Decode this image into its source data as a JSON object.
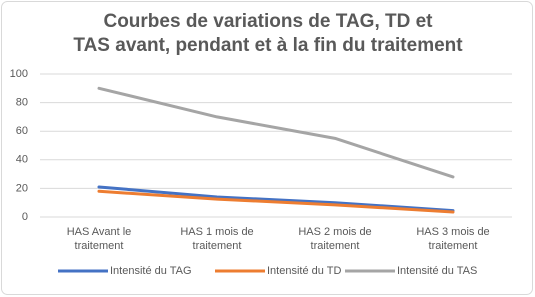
{
  "chart_data": {
    "type": "line",
    "title": [
      "Courbes de variations de TAG, TD et",
      "TAS avant, pendant et à la fin du traitement"
    ],
    "categories": [
      [
        "HAS Avant le",
        "traitement"
      ],
      [
        "HAS 1 mois de",
        "traitement"
      ],
      [
        "HAS 2 mois de",
        "traitement"
      ],
      [
        "HAS 3 mois de",
        "traitement"
      ]
    ],
    "series": [
      {
        "name": "Intensité du TAG",
        "color": "#4472c4",
        "values": [
          21,
          14,
          10,
          4.5
        ]
      },
      {
        "name": "Intensité du TD",
        "color": "#ed7d31",
        "values": [
          18,
          12.5,
          8.5,
          3.5
        ]
      },
      {
        "name": "Intensité du TAS",
        "color": "#a5a5a5",
        "values": [
          90,
          70,
          55,
          28
        ]
      }
    ],
    "ylim": [
      0,
      100
    ],
    "yticks": [
      0,
      20,
      40,
      60,
      80,
      100
    ],
    "grid": true,
    "legend": "bottom"
  }
}
